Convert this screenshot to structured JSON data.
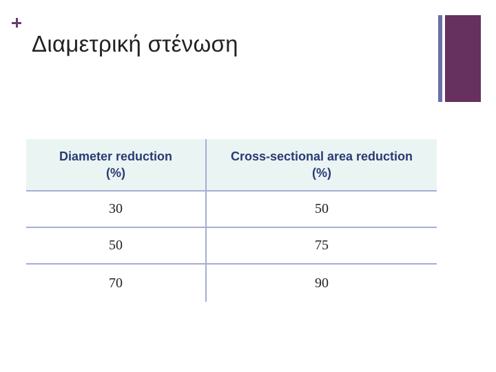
{
  "slide": {
    "title": "Διαμετρική στένωση",
    "accent_color": "#66305f",
    "secondary_color": "#6b6fa8"
  },
  "table": {
    "headers": [
      [
        "Diameter reduction",
        "(%)"
      ],
      [
        "Cross-sectional area reduction",
        "(%)"
      ]
    ],
    "rows": [
      [
        "30",
        "50"
      ],
      [
        "50",
        "75"
      ],
      [
        "70",
        "90"
      ]
    ]
  }
}
